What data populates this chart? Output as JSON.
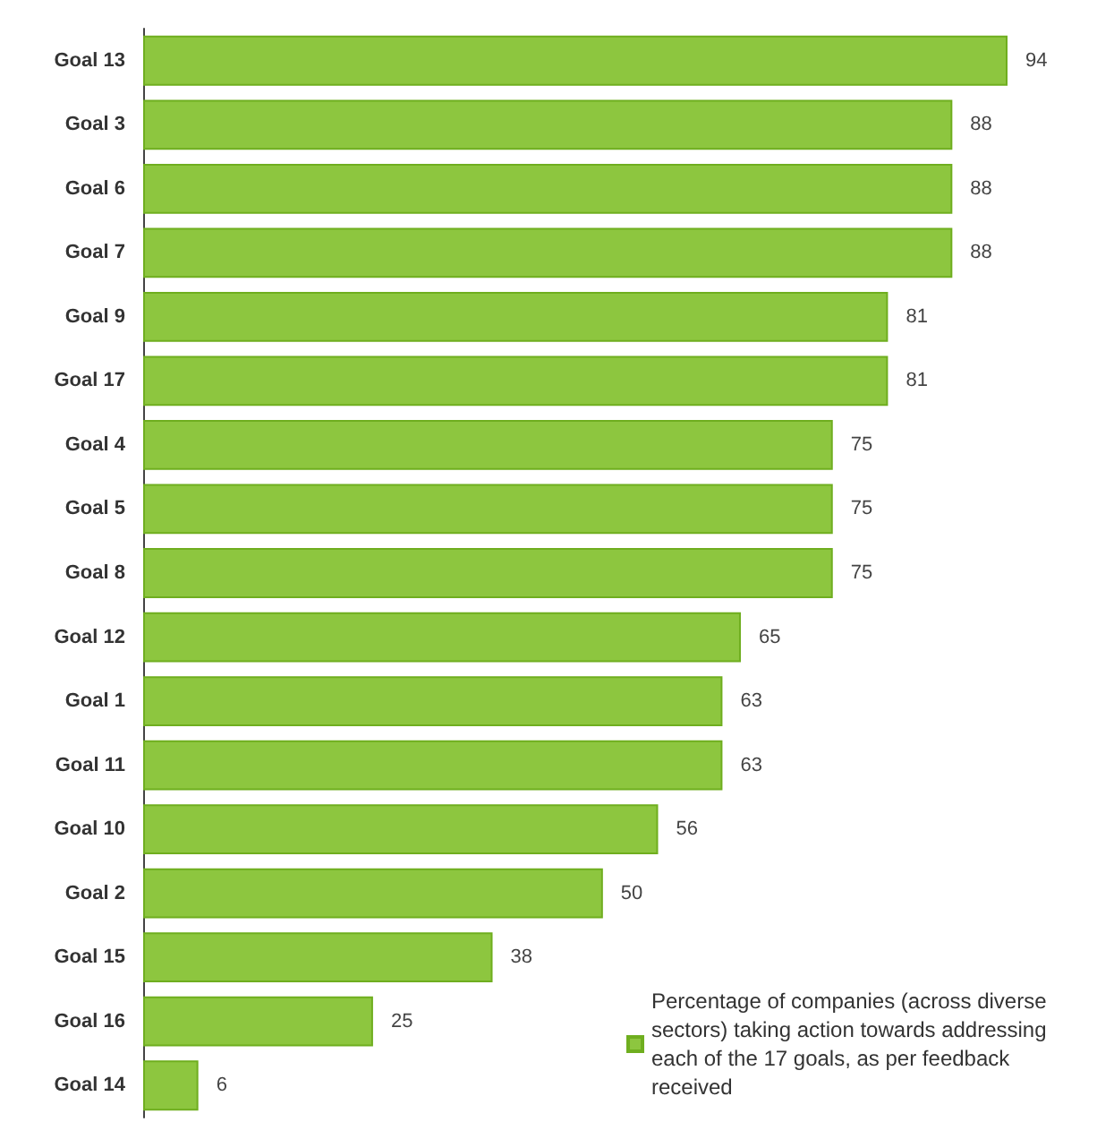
{
  "chart_data": {
    "type": "bar",
    "orientation": "horizontal",
    "categories": [
      "Goal 13",
      "Goal 3",
      "Goal 6",
      "Goal 7",
      "Goal 9",
      "Goal 17",
      "Goal 4",
      "Goal 5",
      "Goal 8",
      "Goal 12",
      "Goal 1",
      "Goal 11",
      "Goal 10",
      "Goal 2",
      "Goal 15",
      "Goal 16",
      "Goal 14"
    ],
    "series": [
      {
        "name": "Percentage of companies (across diverse sectors) taking action towards addressing each of the 17 goals, as per feedback received",
        "color": "#8dc63f",
        "values": [
          94,
          88,
          88,
          88,
          81,
          81,
          75,
          75,
          75,
          65,
          63,
          63,
          56,
          50,
          38,
          25,
          6
        ]
      }
    ],
    "data_labels": true,
    "legend": "bottom right"
  }
}
